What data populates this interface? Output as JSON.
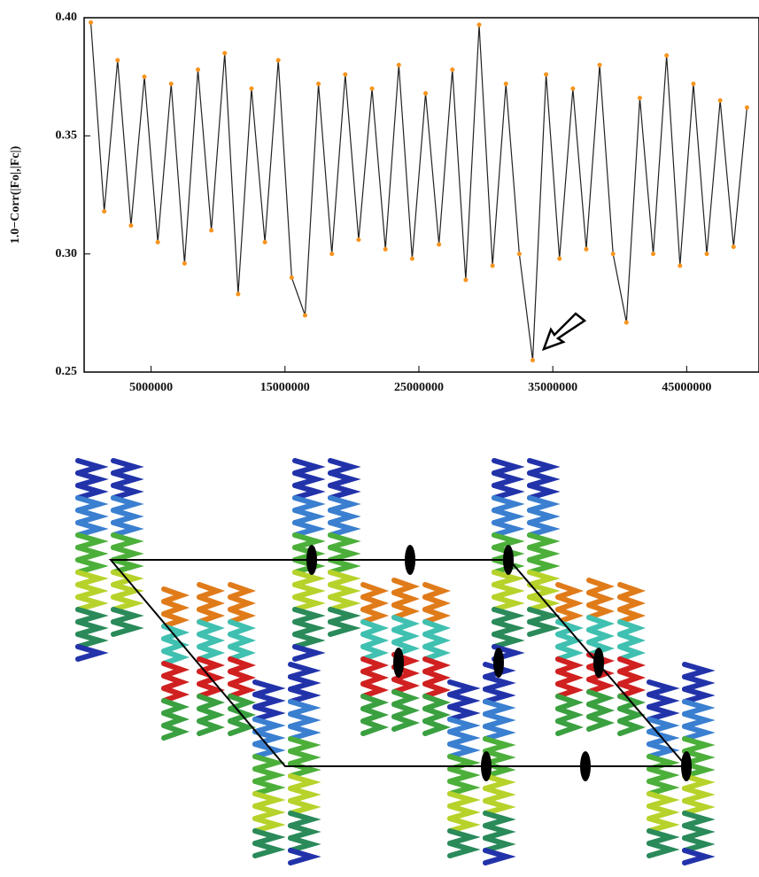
{
  "chart_data": {
    "type": "line",
    "ylabel": "1.0−Corr(|Fo|,|Fc|)",
    "x": [
      500000,
      1500000,
      2500000,
      3500000,
      4500000,
      5500000,
      6500000,
      7500000,
      8500000,
      9500000,
      10500000,
      11500000,
      12500000,
      13500000,
      14500000,
      15500000,
      16500000,
      17500000,
      18500000,
      19500000,
      20500000,
      21500000,
      22500000,
      23500000,
      24500000,
      25500000,
      26500000,
      27500000,
      28500000,
      29500000,
      30500000,
      31500000,
      32500000,
      33500000,
      34500000,
      35500000,
      36500000,
      37500000,
      38500000,
      39500000,
      40500000,
      41500000,
      42500000,
      43500000,
      44500000,
      45500000,
      46500000,
      47500000,
      48500000,
      49500000
    ],
    "series": [
      {
        "color": "#f7941d",
        "values": [
          0.398,
          0.318,
          0.382,
          0.312,
          0.375,
          0.305,
          0.372,
          0.296,
          0.378,
          0.31,
          0.385,
          0.283,
          0.37,
          0.305,
          0.382,
          0.29,
          0.274,
          0.372,
          0.3,
          0.376,
          0.306,
          0.37,
          0.302,
          0.38,
          0.298,
          0.368,
          0.304,
          0.378,
          0.289,
          0.397,
          0.295,
          0.372,
          0.3,
          0.255,
          0.376,
          0.298,
          0.37,
          0.302,
          0.38,
          0.3,
          0.271,
          0.366,
          0.3,
          0.384,
          0.295,
          0.372,
          0.3,
          0.365,
          0.303,
          0.362
        ]
      }
    ],
    "xlim": [
      0,
      50400000
    ],
    "xticks": [
      5000000,
      15000000,
      25000000,
      35000000,
      45000000
    ],
    "ylim": [
      0.25,
      0.4
    ],
    "yticks": [
      0.25,
      {
        "value": 0.3,
        "label": "0.30"
      },
      0.35,
      {
        "value": 0.4,
        "label": "0.40"
      }
    ]
  }
}
